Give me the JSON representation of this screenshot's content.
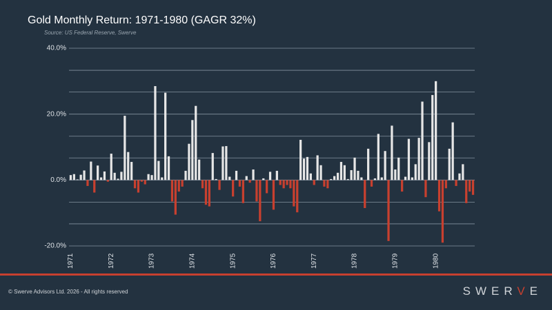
{
  "chart_data": {
    "type": "bar",
    "title": "Gold Monthly Return: 1971-1980 (GAGR 32%)",
    "subtitle": "Source: US Federal Reserve, Swerve",
    "categories": [
      "1971",
      null,
      null,
      null,
      null,
      null,
      null,
      null,
      null,
      null,
      null,
      null,
      "1972",
      null,
      null,
      null,
      null,
      null,
      null,
      null,
      null,
      null,
      null,
      null,
      "1973",
      null,
      null,
      null,
      null,
      null,
      null,
      null,
      null,
      null,
      null,
      null,
      "1974",
      null,
      null,
      null,
      null,
      null,
      null,
      null,
      null,
      null,
      null,
      null,
      "1975",
      null,
      null,
      null,
      null,
      null,
      null,
      null,
      null,
      null,
      null,
      null,
      "1976",
      null,
      null,
      null,
      null,
      null,
      null,
      null,
      null,
      null,
      null,
      null,
      "1977",
      null,
      null,
      null,
      null,
      null,
      null,
      null,
      null,
      null,
      null,
      null,
      "1978",
      null,
      null,
      null,
      null,
      null,
      null,
      null,
      null,
      null,
      null,
      null,
      "1979",
      null,
      null,
      null,
      null,
      null,
      null,
      null,
      null,
      null,
      null,
      null,
      "1980",
      null,
      null,
      null,
      null,
      null,
      null,
      null,
      null,
      null,
      null,
      null
    ],
    "values": [
      1.5,
      1.8,
      0.2,
      1.6,
      2.9,
      -1.8,
      5.6,
      -3.8,
      4.4,
      0.8,
      2.6,
      -0.5,
      8.0,
      2.2,
      0.4,
      2.5,
      19.5,
      8.5,
      5.5,
      -2.5,
      -3.8,
      -0.5,
      -1.3,
      1.8,
      1.5,
      28.5,
      5.8,
      0.8,
      26.5,
      7.2,
      -6.5,
      -10.5,
      -3.5,
      -2.0,
      2.8,
      11.0,
      18.2,
      22.5,
      6.2,
      -2.5,
      -7.5,
      -8.0,
      8.2,
      0.3,
      -3.0,
      10.2,
      10.3,
      1.0,
      -5.0,
      2.8,
      -2.0,
      -7.0,
      1.2,
      -0.8,
      3.2,
      -6.5,
      -12.5,
      0.5,
      -4.0,
      2.5,
      -9.0,
      2.8,
      -1.5,
      -2.5,
      -1.5,
      -2.5,
      -8.0,
      -9.8,
      12.2,
      6.5,
      7.0,
      2.0,
      -1.5,
      7.5,
      4.5,
      -2.0,
      -2.5,
      0.3,
      1.2,
      2.2,
      5.5,
      4.5,
      0.3,
      3.0,
      6.8,
      2.8,
      0.8,
      -8.5,
      9.5,
      -2.0,
      0.5,
      14.0,
      0.8,
      8.8,
      -18.5,
      16.5,
      3.2,
      6.8,
      -3.5,
      1.0,
      12.5,
      0.8,
      4.8,
      12.8,
      23.8,
      -5.2,
      11.5,
      25.8,
      30.0,
      -9.5,
      -19.0,
      -2.5,
      9.5,
      17.5,
      -1.8,
      2.0,
      4.8,
      -7.0,
      -3.5,
      -4.5
    ],
    "positive_color": "#e6e6e6",
    "negative_color": "#c8402f",
    "ylim": [
      -20,
      40
    ],
    "yticks": [
      {
        "value": 40,
        "label": "40.0%"
      },
      {
        "value": 20,
        "label": "20.0%"
      },
      {
        "value": 0,
        "label": "0.0%"
      },
      {
        "value": -20,
        "label": "-20.0%"
      }
    ],
    "minor_yticks": [
      33.3,
      26.7,
      13.3,
      6.7,
      -6.7,
      -13.3
    ],
    "grid": true
  },
  "footer": {
    "copyright": "© Swerve Advisors Ltd. 2026 - All rights reserved",
    "logo": "SWERVE"
  }
}
